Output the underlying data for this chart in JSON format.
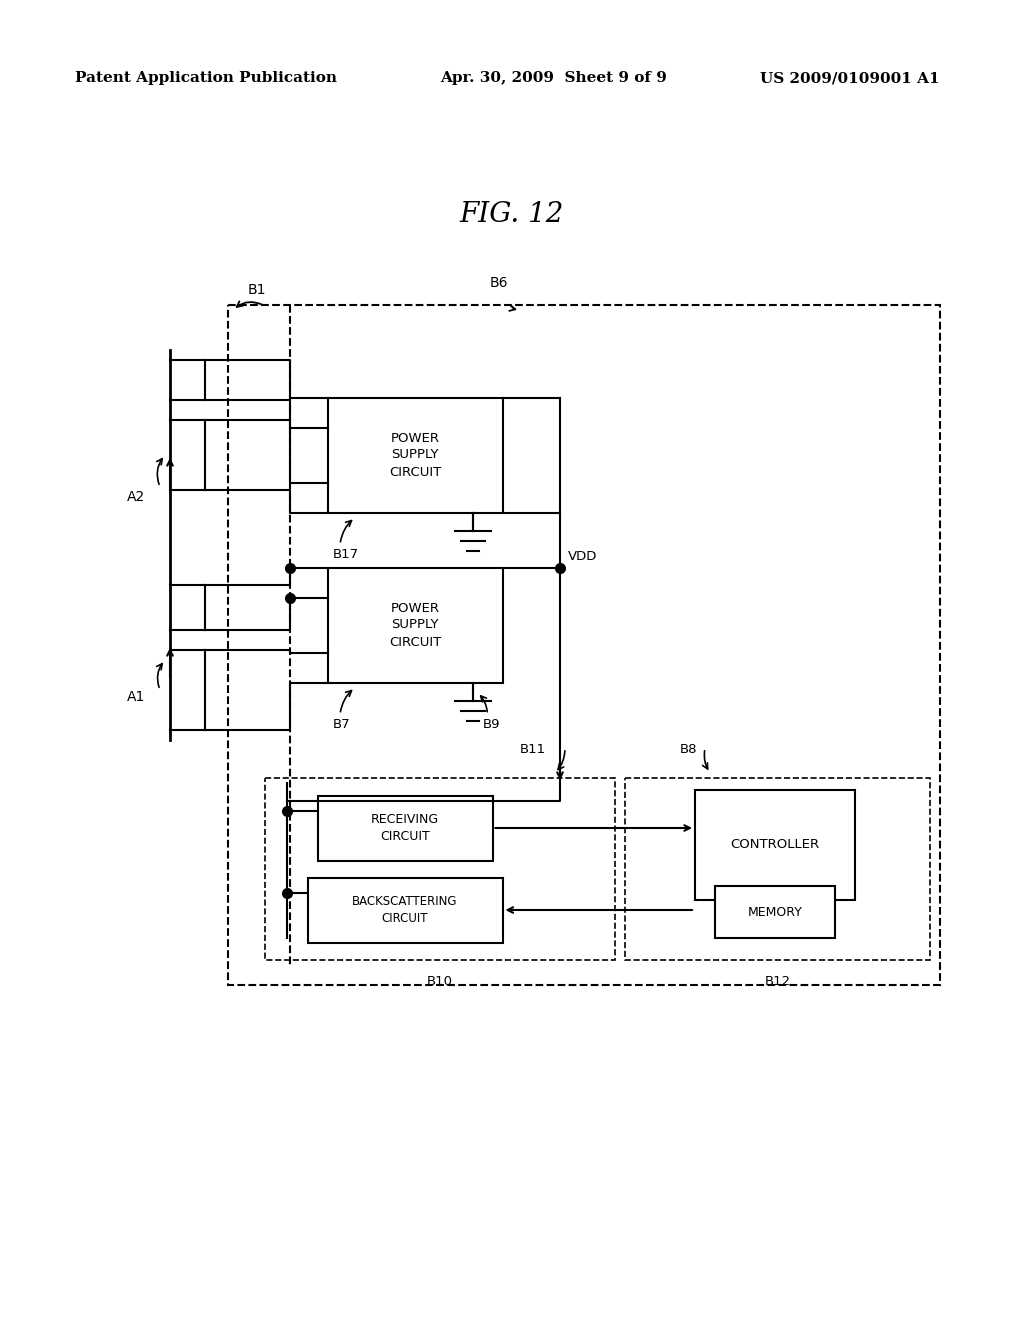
{
  "bg_color": "#ffffff",
  "header_left": "Patent Application Publication",
  "header_center": "Apr. 30, 2009  Sheet 9 of 9",
  "header_right": "US 2009/0109001 A1",
  "title": "FIG. 12",
  "lw": 1.5
}
